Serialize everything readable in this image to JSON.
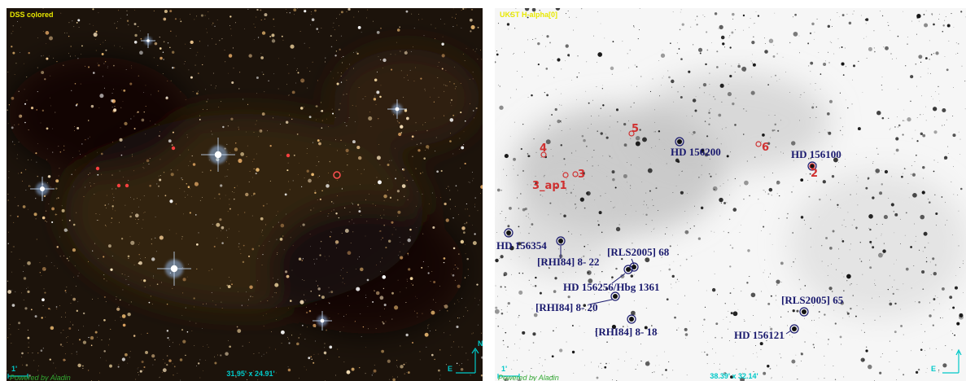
{
  "panels": [
    {
      "survey": "DSS colored",
      "scale": "1'",
      "fov": "31.95' x 24.91'",
      "credit": "Powered by Aladin",
      "compass": {
        "north": "N",
        "east": "E"
      }
    },
    {
      "survey": "UKST H-alpha[0]",
      "scale": "1'",
      "fov": "38.39' x 32.14'",
      "credit": "Powered by Aladin",
      "compass": {
        "east": "E"
      },
      "objects": [
        "HD 156200",
        "HD 156100",
        "HD 156354",
        "[RHI84] 8- 22",
        "[RLS2005] 68",
        "HD 156256/Hbg 1361",
        "[RHI84] 8- 20",
        "[RHI84] 8- 18",
        "[RLS2005] 65",
        "HD 156121"
      ],
      "markers": [
        "4",
        "5",
        "6",
        "3_ap1",
        "3",
        "2"
      ]
    }
  ]
}
